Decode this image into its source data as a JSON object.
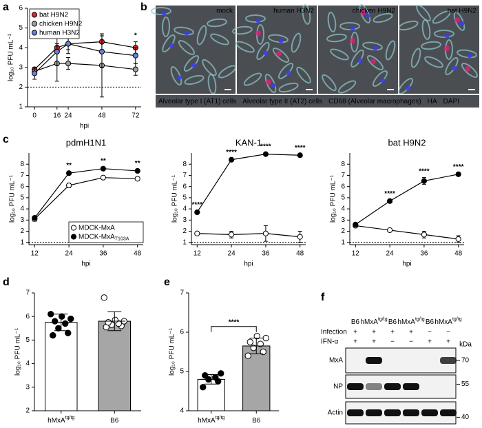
{
  "panel_labels": [
    "a",
    "b",
    "c",
    "d",
    "e",
    "f"
  ],
  "chart_data": [
    {
      "type": "line",
      "x": [
        0,
        16,
        24,
        48,
        72
      ],
      "xlim": [
        -5,
        76
      ],
      "xticks": [
        0,
        16,
        24,
        48,
        72
      ],
      "ylim": [
        1,
        6
      ],
      "yticks": [
        1,
        2,
        3,
        4,
        5,
        6
      ],
      "x_label": "hpi",
      "y_label": "log₁₀ PFU mL⁻¹",
      "detection_limit": 2,
      "legend": "upper left",
      "series": [
        {
          "name": "bat H9N2",
          "color": "#000000",
          "fill": "#d62728",
          "values": [
            2.9,
            4.0,
            4.2,
            4.3,
            4.0
          ],
          "errors": [
            0.1,
            0.2,
            0.3,
            0.4,
            0.3
          ]
        },
        {
          "name": "chicken H9N2",
          "color": "#000000",
          "fill": "#9e9e9e",
          "values": [
            2.8,
            3.2,
            3.2,
            3.1,
            2.9
          ],
          "errors": [
            0.1,
            0.9,
            0.3,
            1.6,
            0.3
          ]
        },
        {
          "name": "human H3N2",
          "color": "#000000",
          "fill": "#6b7fd7",
          "values": [
            2.7,
            3.8,
            4.2,
            3.8,
            3.6
          ],
          "errors": [
            0.3,
            0.7,
            0.5,
            0.8,
            0.4
          ]
        }
      ],
      "significance": [
        null,
        null,
        null,
        null,
        "*"
      ],
      "significance_color": "#e8312f"
    },
    {
      "type": "line",
      "title": "pdmH1N1",
      "x": [
        12,
        24,
        36,
        48
      ],
      "xlim": [
        10,
        50
      ],
      "xticks": [
        12,
        24,
        36,
        48
      ],
      "ylim": [
        0.8,
        9
      ],
      "yticks": [
        1,
        2,
        3,
        4,
        5,
        6,
        7,
        8
      ],
      "x_label": "hpi",
      "y_label": "log₁₀ PFU mL⁻¹",
      "detection_limit": 1,
      "legend": "lower right",
      "series": [
        {
          "name": "MDCK-MxA",
          "color": "#000000",
          "fill": "#ffffff",
          "values": [
            3.1,
            6.1,
            6.8,
            6.7
          ],
          "errors": [
            0.2,
            0.2,
            0.1,
            0.1
          ]
        },
        {
          "name": "MDCK-MxA",
          "subscript": "T103A",
          "color": "#000000",
          "fill": "#000000",
          "values": [
            3.2,
            7.2,
            7.6,
            7.4
          ],
          "errors": [
            0.15,
            0.1,
            0.1,
            0.1
          ]
        }
      ],
      "significance": [
        null,
        "**",
        "**",
        "**"
      ]
    },
    {
      "type": "line",
      "title": "KAN-1",
      "x": [
        12,
        24,
        36,
        48
      ],
      "xlim": [
        10,
        50
      ],
      "xticks": [
        12,
        24,
        36,
        48
      ],
      "ylim": [
        0.8,
        9
      ],
      "yticks": [
        1,
        2,
        3,
        4,
        5,
        6,
        7,
        8
      ],
      "x_label": "hpi",
      "y_label": "log₁₀ PFU mL⁻¹",
      "detection_limit": 1,
      "series": [
        {
          "name": "MDCK-MxA",
          "color": "#000000",
          "fill": "#ffffff",
          "values": [
            1.8,
            1.7,
            1.8,
            1.5
          ],
          "errors": [
            0.1,
            0.3,
            0.7,
            0.5
          ]
        },
        {
          "name": "MDCK-MxA",
          "subscript": "T103A",
          "color": "#000000",
          "fill": "#000000",
          "values": [
            3.7,
            8.4,
            8.9,
            8.8
          ],
          "errors": [
            0.1,
            0.1,
            0.1,
            0.1
          ]
        }
      ],
      "significance": [
        "****",
        "****",
        "****",
        "****"
      ]
    },
    {
      "type": "line",
      "title": "bat H9N2",
      "x": [
        12,
        24,
        36,
        48
      ],
      "xlim": [
        10,
        50
      ],
      "xticks": [
        12,
        24,
        36,
        48
      ],
      "ylim": [
        0.8,
        9
      ],
      "yticks": [
        1,
        2,
        3,
        4,
        5,
        6,
        7,
        8
      ],
      "x_label": "hpi",
      "y_label": "log₁₀ PFU mL⁻¹",
      "detection_limit": 1,
      "series": [
        {
          "name": "MDCK-MxA",
          "color": "#000000",
          "fill": "#ffffff",
          "values": [
            2.5,
            2.1,
            1.7,
            1.3
          ],
          "errors": [
            0.1,
            0.1,
            0.3,
            0.3
          ]
        },
        {
          "name": "MDCK-MxA",
          "subscript": "T103A",
          "color": "#000000",
          "fill": "#000000",
          "values": [
            2.6,
            4.7,
            6.5,
            7.1
          ],
          "errors": [
            0.1,
            0.1,
            0.3,
            0.1
          ]
        }
      ],
      "significance": [
        null,
        "****",
        "****",
        "****"
      ]
    },
    {
      "type": "bar",
      "categories": [
        {
          "label": "hMxA",
          "superscript": "tg/tg"
        },
        {
          "label": "B6"
        }
      ],
      "values": [
        5.75,
        5.8
      ],
      "errors": [
        0.35,
        0.4
      ],
      "colors": [
        "#ffffff",
        "#a6a6a6"
      ],
      "point_colors": [
        "#000000",
        "#ffffff"
      ],
      "points": [
        [
          5.2,
          5.3,
          5.5,
          5.7,
          5.8,
          5.9,
          6.0,
          6.1
        ],
        [
          5.55,
          5.6,
          5.65,
          5.7,
          5.75,
          5.8,
          5.85,
          6.8
        ]
      ],
      "ylim": [
        2,
        7
      ],
      "yticks": [
        2,
        3,
        4,
        5,
        6,
        7
      ],
      "y_label": "log₁₀ PFU mL⁻¹"
    },
    {
      "type": "bar",
      "categories": [
        {
          "label": "hMxA",
          "superscript": "tg/tg"
        },
        {
          "label": "B6"
        }
      ],
      "values": [
        4.8,
        5.65
      ],
      "errors": [
        0.12,
        0.2
      ],
      "colors": [
        "#ffffff",
        "#a6a6a6"
      ],
      "point_colors": [
        "#000000",
        "#ffffff"
      ],
      "points": [
        [
          4.6,
          4.75,
          4.8,
          4.85,
          4.9,
          4.95
        ],
        [
          5.4,
          5.5,
          5.6,
          5.7,
          5.75,
          5.85,
          5.9
        ]
      ],
      "ylim": [
        4,
        7
      ],
      "yticks": [
        4,
        5,
        6,
        7
      ],
      "y_label": "log₁₀ PFU mL⁻¹",
      "comparison": "****"
    }
  ],
  "micrograph": {
    "panels": [
      "mock",
      "human H3N2",
      "chicken H9N2",
      "bat H9N2"
    ],
    "stains": [
      {
        "label": "Alveolar type I (AT1) cells",
        "color": "#3cc6d8"
      },
      {
        "label": "Alveolar type II (AT2) cells",
        "color": "#f2e13a"
      },
      {
        "label": "CD68 (Alveolar macrophages)",
        "color": "#5fd35f"
      },
      {
        "label": "HA",
        "color": "#e02020"
      },
      {
        "label": "DAPI",
        "color": "#3a3cf0"
      }
    ]
  },
  "blot": {
    "columns": [
      {
        "label": "B6"
      },
      {
        "label": "hMxA",
        "superscript": "tg/tg"
      },
      {
        "label": "B6"
      },
      {
        "label": "hMxA",
        "superscript": "tg/tg"
      },
      {
        "label": "B6"
      },
      {
        "label": "hMxA",
        "superscript": "tg/tg"
      }
    ],
    "conditions": [
      {
        "name": "Infection",
        "signs": [
          "+",
          "+",
          "+",
          "+",
          "−",
          "−"
        ]
      },
      {
        "name": "IFN-α",
        "signs": [
          "+",
          "+",
          "−",
          "−",
          "+",
          "+"
        ]
      }
    ],
    "marker_unit": "kDa",
    "rows": [
      {
        "name": "MxA",
        "marker": "70",
        "intensity": [
          0,
          1,
          0,
          0,
          0,
          0.8
        ]
      },
      {
        "name": "NP",
        "marker": "55",
        "intensity": [
          1,
          0.5,
          1,
          1,
          0,
          0
        ]
      },
      {
        "name": "Actin",
        "marker": "40",
        "intensity": [
          1,
          1,
          1,
          1,
          1,
          1
        ]
      }
    ]
  }
}
